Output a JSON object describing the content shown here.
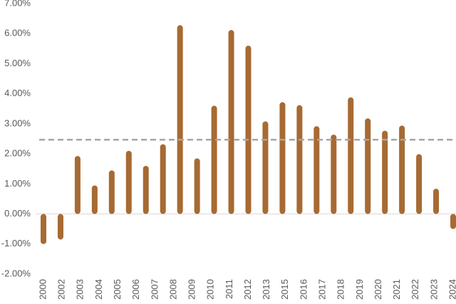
{
  "chart_data": {
    "type": "bar",
    "categories": [
      "2000",
      "2002",
      "2003",
      "2004",
      "2005",
      "2006",
      "2007",
      "2008",
      "2009",
      "2010",
      "2011",
      "2012",
      "2013",
      null,
      "2015",
      "2016",
      "2017",
      "2018",
      "2019",
      "2020",
      null,
      "2021",
      "2022",
      "2023",
      "2024"
    ],
    "values": [
      -1.0,
      -0.85,
      1.93,
      0.95,
      1.45,
      2.1,
      1.6,
      2.32,
      6.28,
      1.85,
      3.6,
      6.12,
      5.6,
      3.08,
      3.72,
      3.62,
      2.92,
      2.64,
      3.88,
      3.18,
      2.77,
      2.94,
      1.99,
      0.84,
      -0.5
    ],
    "color": "#a76a33",
    "reference_line": 2.47,
    "reference_color": "#a6a6a6",
    "ylim": [
      -2,
      7
    ],
    "yticks": [
      {
        "value": -2,
        "label": "-2.00%"
      },
      {
        "value": -1,
        "label": "-1.00%"
      },
      {
        "value": 0,
        "label": "0.00%"
      },
      {
        "value": 1,
        "label": "1.00%"
      },
      {
        "value": 2,
        "label": "2.00%"
      },
      {
        "value": 3,
        "label": "3.00%"
      },
      {
        "value": 4,
        "label": "4.00%"
      },
      {
        "value": 5,
        "label": "5.00%"
      },
      {
        "value": 6,
        "label": "6.00%"
      },
      {
        "value": 7,
        "label": "7.00%"
      }
    ]
  }
}
